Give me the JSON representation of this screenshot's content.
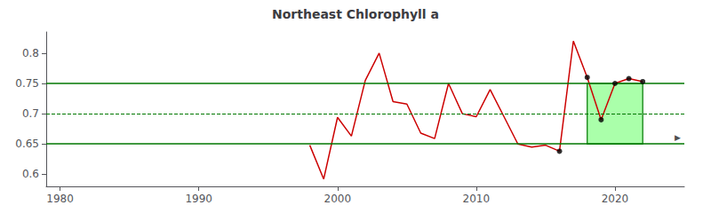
{
  "chart_data": {
    "type": "line",
    "title": "Northeast Chlorophyll a",
    "x": [
      1998,
      1999,
      2000,
      2001,
      2002,
      2003,
      2004,
      2005,
      2006,
      2007,
      2008,
      2009,
      2010,
      2011,
      2012,
      2013,
      2014,
      2015,
      2016,
      2017,
      2018,
      2019,
      2020,
      2021,
      2022
    ],
    "series": [
      {
        "type": "line",
        "color": "#cc0000",
        "line_style": "solid",
        "values": [
          0.648,
          0.592,
          0.694,
          0.663,
          0.755,
          0.8,
          0.72,
          0.716,
          0.668,
          0.659,
          0.75,
          0.7,
          0.695,
          0.74,
          0.695,
          0.65,
          0.645,
          0.648,
          0.638,
          0.82,
          0.76,
          0.69,
          0.75,
          0.758,
          0.753
        ]
      },
      {
        "type": "scatter",
        "color": "#000000",
        "marker": "circle",
        "values": [
          null,
          null,
          null,
          null,
          null,
          null,
          null,
          null,
          null,
          null,
          null,
          null,
          null,
          null,
          null,
          null,
          null,
          null,
          0.638,
          null,
          0.76,
          0.69,
          0.75,
          0.758,
          0.753
        ]
      }
    ],
    "reference_lines": [
      {
        "value": 0.75,
        "color": "#007700",
        "line_style": "solid"
      },
      {
        "value": 0.65,
        "color": "#007700",
        "line_style": "solid"
      },
      {
        "value": 0.7,
        "color": "#007700",
        "line_style": "dashed"
      }
    ],
    "highlight": {
      "x": [
        2018,
        2022
      ],
      "y": [
        0.65,
        0.75
      ],
      "color": "#aaffaa",
      "edge_color": "#007700"
    },
    "annotations": [
      "▶"
    ],
    "xlim": [
      1979,
      2025
    ],
    "xticks": [
      1980,
      1990,
      2000,
      2010,
      2020
    ],
    "ylim": [
      0.58,
      0.835
    ],
    "yticks": [
      0.6,
      0.65,
      0.7,
      0.75,
      0.8
    ],
    "grid": false
  }
}
